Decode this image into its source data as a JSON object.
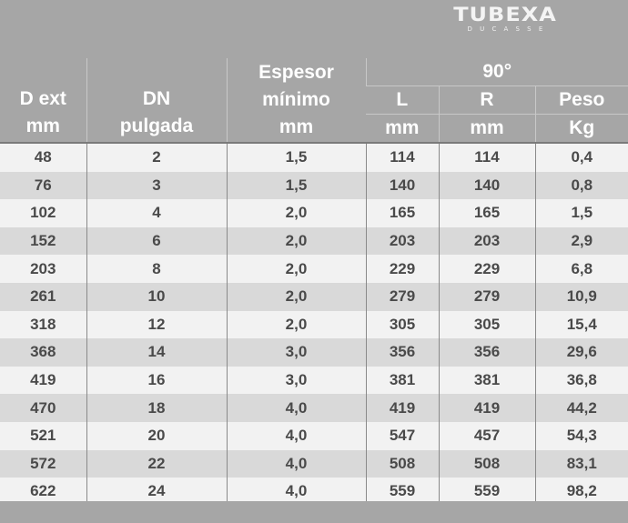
{
  "logo": {
    "main": "TUBEXA",
    "sub": "DUCASSE"
  },
  "header": {
    "dext_line1": "D ext",
    "dext_line2": "mm",
    "dn_line1": "DN",
    "dn_line2": "pulgada",
    "esp_line1": "Espesor",
    "esp_line2": "mínimo",
    "esp_line3": "mm",
    "group": "90°",
    "l_line1": "L",
    "l_line2": "mm",
    "r_line1": "R",
    "r_line2": "mm",
    "peso_line1": "Peso",
    "peso_line2": "Kg"
  },
  "rows": [
    [
      "48",
      "2",
      "1,5",
      "114",
      "114",
      "0,4"
    ],
    [
      "76",
      "3",
      "1,5",
      "140",
      "140",
      "0,8"
    ],
    [
      "102",
      "4",
      "2,0",
      "165",
      "165",
      "1,5"
    ],
    [
      "152",
      "6",
      "2,0",
      "203",
      "203",
      "2,9"
    ],
    [
      "203",
      "8",
      "2,0",
      "229",
      "229",
      "6,8"
    ],
    [
      "261",
      "10",
      "2,0",
      "279",
      "279",
      "10,9"
    ],
    [
      "318",
      "12",
      "2,0",
      "305",
      "305",
      "15,4"
    ],
    [
      "368",
      "14",
      "3,0",
      "356",
      "356",
      "29,6"
    ],
    [
      "419",
      "16",
      "3,0",
      "381",
      "381",
      "36,8"
    ],
    [
      "470",
      "18",
      "4,0",
      "419",
      "419",
      "44,2"
    ],
    [
      "521",
      "20",
      "4,0",
      "547",
      "457",
      "54,3"
    ],
    [
      "572",
      "22",
      "4,0",
      "508",
      "508",
      "83,1"
    ],
    [
      "622",
      "24",
      "4,0",
      "559",
      "559",
      "98,2"
    ]
  ],
  "colors": {
    "header_bg": "#a6a6a6",
    "row_light": "#f2f2f2",
    "row_dark": "#d9d9d9",
    "text": "#4a4a4a"
  }
}
